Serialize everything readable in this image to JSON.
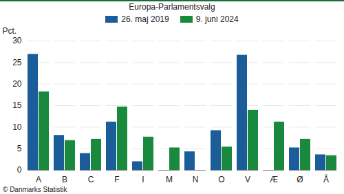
{
  "chart_data": {
    "type": "bar",
    "title": "Europa-Parlamentsvalg",
    "ylabel": "Pct.",
    "caption": "© Danmarks Statistik",
    "categories": [
      "A",
      "B",
      "C",
      "F",
      "I",
      "M",
      "N",
      "O",
      "V",
      "Æ",
      "Ø",
      "Å"
    ],
    "series": [
      {
        "name": "26. maj 2019",
        "color": "#1a5d99",
        "values": [
          26.9,
          8.1,
          3.9,
          11.2,
          2.0,
          null,
          4.3,
          9.2,
          26.7,
          null,
          5.2,
          3.6
        ]
      },
      {
        "name": "9. juni 2024",
        "color": "#18893d",
        "values": [
          18.2,
          6.9,
          7.2,
          14.7,
          7.7,
          5.2,
          null,
          5.4,
          13.9,
          11.2,
          7.2,
          3.4
        ]
      }
    ],
    "ylim": [
      0,
      30
    ],
    "yticks": [
      0,
      5,
      10,
      15,
      20,
      25,
      30
    ],
    "grid": true,
    "legend": "top"
  }
}
